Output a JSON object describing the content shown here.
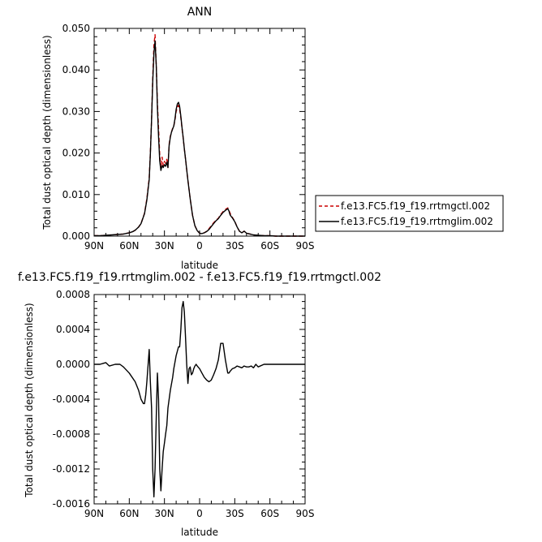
{
  "chart_data": [
    {
      "type": "line",
      "title": "ANN",
      "xlabel": "latitude",
      "ylabel": "Total dust optical depth (dimensionless)",
      "xlim": [
        90,
        -90
      ],
      "ylim": [
        0,
        0.05
      ],
      "x_ticks": [
        90,
        60,
        30,
        0,
        -30,
        -60,
        -90
      ],
      "x_tick_labels": [
        "90N",
        "60N",
        "30N",
        "0",
        "30S",
        "60S",
        "90S"
      ],
      "y_ticks": [
        0,
        0.01,
        0.02,
        0.03,
        0.04,
        0.05
      ],
      "y_tick_labels": [
        "0.000",
        "0.010",
        "0.020",
        "0.030",
        "0.040",
        "0.050"
      ],
      "legend_position": "right",
      "x": [
        90,
        85,
        80,
        75,
        70,
        65,
        60,
        57,
        55,
        52,
        50,
        47,
        45,
        43,
        42,
        41,
        40,
        39,
        38,
        37,
        36,
        35,
        34,
        33,
        32,
        31,
        30,
        29,
        28,
        27,
        26,
        25,
        24,
        23,
        22,
        21,
        20,
        19,
        18,
        17,
        16,
        15,
        14,
        13,
        12,
        11,
        10,
        8,
        6,
        4,
        2,
        0,
        -2,
        -4,
        -6,
        -8,
        -10,
        -12,
        -14,
        -16,
        -18,
        -20,
        -22,
        -24,
        -25,
        -26,
        -27,
        -28,
        -30,
        -32,
        -34,
        -36,
        -38,
        -40,
        -43,
        -46,
        -50,
        -55,
        -60,
        -65,
        -70,
        -75,
        -80,
        -85,
        -90
      ],
      "series": [
        {
          "name": "f.e13.FC5.f19_f19.rrtmgctl.002",
          "color": "#cc0000",
          "dash": "dashed",
          "values": [
            0.0001,
            0.0001,
            0.0002,
            0.0003,
            0.0004,
            0.0005,
            0.0008,
            0.0011,
            0.0014,
            0.0022,
            0.003,
            0.0055,
            0.009,
            0.014,
            0.02,
            0.028,
            0.038,
            0.046,
            0.0485,
            0.041,
            0.032,
            0.026,
            0.0195,
            0.0165,
            0.019,
            0.017,
            0.018,
            0.0175,
            0.0185,
            0.0165,
            0.022,
            0.024,
            0.025,
            0.026,
            0.0265,
            0.028,
            0.03,
            0.031,
            0.0315,
            0.0305,
            0.0285,
            0.026,
            0.0235,
            0.021,
            0.0185,
            0.016,
            0.0135,
            0.009,
            0.005,
            0.0025,
            0.0013,
            0.0007,
            0.0006,
            0.0008,
            0.0012,
            0.0018,
            0.0025,
            0.0032,
            0.0038,
            0.0043,
            0.0052,
            0.0059,
            0.0064,
            0.0068,
            0.0062,
            0.0055,
            0.0049,
            0.0045,
            0.0036,
            0.0022,
            0.0012,
            0.0008,
            0.0012,
            0.0007,
            0.0005,
            0.0003,
            0.0002,
            0.0001,
            0.0001,
            0.0,
            0.0,
            0.0,
            0.0,
            0.0,
            0.0
          ]
        },
        {
          "name": "f.e13.FC5.f19_f19.rrtmglim.002",
          "color": "#000000",
          "dash": "solid",
          "values": [
            0.0001,
            0.0001,
            0.0002,
            0.0003,
            0.0004,
            0.0005,
            0.0008,
            0.0011,
            0.0014,
            0.0022,
            0.003,
            0.0054,
            0.0087,
            0.0136,
            0.0197,
            0.028,
            0.037,
            0.044,
            0.047,
            0.041,
            0.031,
            0.024,
            0.018,
            0.0158,
            0.017,
            0.0165,
            0.0172,
            0.0168,
            0.0178,
            0.0165,
            0.0217,
            0.0238,
            0.025,
            0.0258,
            0.0265,
            0.0283,
            0.0305,
            0.0318,
            0.0322,
            0.0312,
            0.0288,
            0.0262,
            0.0237,
            0.021,
            0.0185,
            0.016,
            0.0134,
            0.009,
            0.005,
            0.0025,
            0.0013,
            0.0007,
            0.0006,
            0.0008,
            0.0011,
            0.0016,
            0.0023,
            0.003,
            0.0037,
            0.0042,
            0.005,
            0.0057,
            0.0062,
            0.0066,
            0.0061,
            0.0051,
            0.0047,
            0.0044,
            0.0035,
            0.0022,
            0.0012,
            0.0008,
            0.0012,
            0.0007,
            0.0005,
            0.0003,
            0.0002,
            0.0001,
            0.0001,
            0.0,
            0.0,
            0.0,
            0.0,
            0.0,
            0.0
          ]
        }
      ]
    },
    {
      "type": "line",
      "title": "f.e13.FC5.f19_f19.rrtmglim.002 - f.e13.FC5.f19_f19.rrtmgctl.002",
      "xlabel": "latitude",
      "ylabel": "Total dust optical depth (dimensionless)",
      "xlim": [
        90,
        -90
      ],
      "ylim": [
        -0.0016,
        0.0008
      ],
      "x_ticks": [
        90,
        60,
        30,
        0,
        -30,
        -60,
        -90
      ],
      "x_tick_labels": [
        "90N",
        "60N",
        "30N",
        "0",
        "30S",
        "60S",
        "90S"
      ],
      "y_ticks": [
        -0.0016,
        -0.0012,
        -0.0008,
        -0.0004,
        0.0,
        0.0004,
        0.0008
      ],
      "y_tick_labels": [
        "-0.0016",
        "-0.0012",
        "-0.0008",
        "-0.0004",
        "0.0000",
        "0.0004",
        "0.0008"
      ],
      "x": [
        90,
        85,
        80,
        77,
        72,
        68,
        65,
        60,
        55,
        52,
        50,
        48,
        47,
        46,
        45,
        43,
        42,
        41,
        40,
        39,
        38,
        37,
        36,
        35,
        34,
        33,
        32,
        31,
        30,
        29,
        28,
        27,
        25,
        23,
        22,
        20,
        18,
        17,
        16,
        15,
        14,
        13,
        12,
        11,
        10,
        9,
        8,
        7,
        6,
        5,
        4,
        3,
        2,
        0,
        -2,
        -4,
        -6,
        -8,
        -10,
        -12,
        -14,
        -16,
        -18,
        -20,
        -22,
        -24,
        -25,
        -26,
        -28,
        -30,
        -32,
        -34,
        -36,
        -38,
        -40,
        -42,
        -44,
        -46,
        -48,
        -50,
        -55,
        -60,
        -65,
        -70,
        -75,
        -80,
        -85,
        -90
      ],
      "series": [
        {
          "name": "",
          "color": "#000000",
          "dash": "solid",
          "values": [
            0.0,
            0.0,
            2e-05,
            -2e-05,
            0.0,
            0.0,
            -3e-05,
            -0.0001,
            -0.0002,
            -0.0003,
            -0.0004,
            -0.00045,
            -0.00045,
            -0.00035,
            -0.0002,
            0.00017,
            -0.0002,
            -0.0005,
            -0.0012,
            -0.00152,
            -0.0012,
            -0.0006,
            -0.0001,
            -0.0004,
            -0.0012,
            -0.00145,
            -0.0012,
            -0.001,
            -0.0009,
            -0.0008,
            -0.0007,
            -0.0005,
            -0.0003,
            -0.00015,
            -5e-05,
            0.0001,
            0.0002,
            0.0002,
            0.0004,
            0.00065,
            0.00072,
            0.0006,
            0.0003,
            0.0,
            -0.00022,
            -5e-05,
            -3e-05,
            -0.00012,
            -0.0001,
            -5e-05,
            -2e-05,
            0.0,
            -2e-05,
            -5e-05,
            -0.0001,
            -0.00015,
            -0.00018,
            -0.0002,
            -0.00018,
            -0.00012,
            -5e-05,
            5e-05,
            0.00024,
            0.00024,
            5e-05,
            -0.0001,
            -0.0001,
            -8e-05,
            -5e-05,
            -4e-05,
            -2e-05,
            -3e-05,
            -4e-05,
            -2e-05,
            -3e-05,
            -3e-05,
            -2e-05,
            -4e-05,
            0.0,
            -3e-05,
            0.0,
            0.0,
            0.0,
            0.0,
            0.0,
            0.0,
            0.0,
            0.0
          ]
        }
      ]
    }
  ]
}
